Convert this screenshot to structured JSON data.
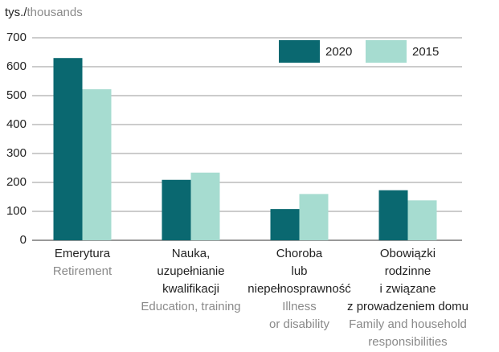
{
  "chart_data": {
    "type": "bar",
    "y_label": [
      "tys./",
      "thousands"
    ],
    "categories": [
      [
        "Emerytura"
      ],
      [
        "Nauka,",
        "uzupełnianie",
        "kwalifikacji"
      ],
      [
        "Choroba",
        "lub",
        "niepełnosprawność"
      ],
      [
        "Obowiązki",
        "rodzinne",
        "i związane",
        "z prowadzeniem domu"
      ]
    ],
    "category_translations": [
      [
        "Retirement"
      ],
      [
        "Education, training"
      ],
      [
        "Illness",
        "or disability"
      ],
      [
        "Family and household",
        "responsibilities"
      ]
    ],
    "series": [
      {
        "name": "2020",
        "color": "#0a6870",
        "values": [
          630,
          209,
          108,
          173
        ]
      },
      {
        "name": "2015",
        "color": "#a6dcd0",
        "values": [
          522,
          234,
          160,
          138
        ]
      }
    ],
    "ylim": [
      0,
      700
    ],
    "yticks": [
      0,
      100,
      200,
      300,
      400,
      500,
      600,
      700
    ],
    "grid": true,
    "legend": "top-right"
  }
}
